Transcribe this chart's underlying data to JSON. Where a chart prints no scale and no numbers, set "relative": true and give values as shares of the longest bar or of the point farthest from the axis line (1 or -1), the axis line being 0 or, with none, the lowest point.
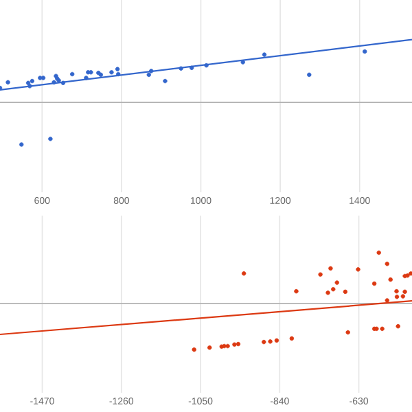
{
  "chart_data": [
    {
      "type": "scatter",
      "relative": true,
      "xlim": [
        494,
        1532
      ],
      "xticks": [
        600,
        800,
        1000,
        1200,
        1400
      ],
      "grid": "x",
      "series": [
        {
          "color": "#3366cc",
          "x": [
            494,
            514,
            565,
            569,
            575,
            595,
            603,
            635,
            638,
            630,
            642,
            653,
            676,
            711,
            716,
            723,
            742,
            748,
            775,
            790,
            792,
            869,
            875,
            910,
            950,
            977,
            1014,
            1106,
            1160,
            1273,
            1413,
            548,
            621
          ],
          "values": [
            0.23,
            0.32,
            0.31,
            0.26,
            0.34,
            0.39,
            0.39,
            0.42,
            0.38,
            0.32,
            0.35,
            0.31,
            0.45,
            0.39,
            0.48,
            0.48,
            0.47,
            0.44,
            0.48,
            0.53,
            0.45,
            0.44,
            0.5,
            0.34,
            0.54,
            0.55,
            0.59,
            0.64,
            0.76,
            0.44,
            0.81,
            -0.67,
            -0.58
          ]
        },
        {
          "type": "line",
          "color": "#3366cc",
          "x": [
            494,
            1532
          ],
          "values": [
            0.2,
            1
          ]
        }
      ]
    },
    {
      "type": "scatter",
      "relative": true,
      "xlim": [
        -1582,
        -489
      ],
      "xticks": [
        -1470,
        -1260,
        -1050,
        -840,
        -630
      ],
      "grid": "x",
      "series": [
        {
          "color": "#dc3912",
          "x": [
            -935,
            -1067,
            -1026,
            -994,
            -987,
            -978,
            -960,
            -950,
            -882,
            -865,
            -848,
            -808,
            -796,
            -732,
            -705,
            -712,
            -698,
            -688,
            -666,
            -659,
            -632,
            -589,
            -589,
            -583,
            -568,
            -577,
            -555,
            -546,
            -555,
            -530,
            -529,
            -526,
            -513,
            -508,
            -508,
            -501,
            -492
          ],
          "values": [
            0.59,
            -0.91,
            -0.87,
            -0.85,
            -0.84,
            -0.84,
            -0.81,
            -0.8,
            -0.76,
            -0.75,
            -0.73,
            -0.69,
            0.24,
            0.57,
            0.69,
            0.21,
            0.28,
            0.41,
            0.23,
            -0.57,
            0.67,
            0.39,
            -0.5,
            -0.5,
            -0.5,
            1,
            0.78,
            0.47,
            0.06,
            0.24,
            0.13,
            -0.45,
            0.14,
            0.23,
            0.54,
            0.55,
            0.59
          ]
        },
        {
          "type": "line",
          "color": "#dc3912",
          "x": [
            -1582,
            -489
          ],
          "values": [
            -0.61,
            0.05
          ]
        }
      ]
    }
  ]
}
